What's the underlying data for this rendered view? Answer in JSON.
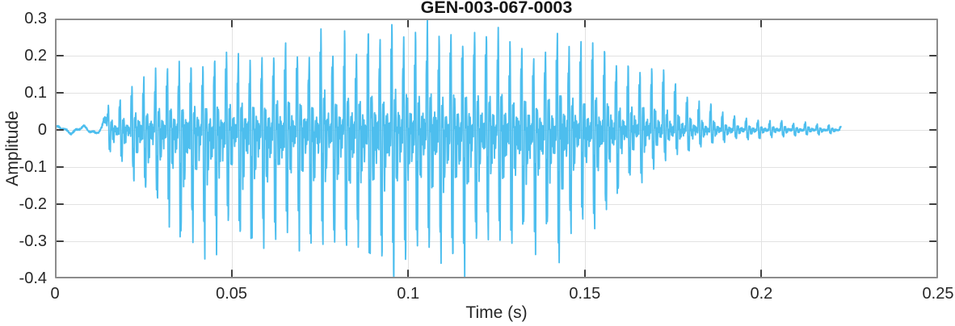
{
  "chart_data": {
    "type": "line",
    "title": "GEN-003-067-0003",
    "xlabel": "Time (s)",
    "ylabel": "Amplitude",
    "xlim": [
      0,
      0.25
    ],
    "ylim": [
      -0.4,
      0.3
    ],
    "x_ticks": [
      0,
      0.05,
      0.1,
      0.15,
      0.2,
      0.25
    ],
    "x_tick_labels": [
      "0",
      "0.05",
      "0.1",
      "0.15",
      "0.2",
      "0.25"
    ],
    "y_ticks": [
      -0.4,
      -0.3,
      -0.2,
      -0.1,
      0,
      0.1,
      0.2,
      0.3
    ],
    "y_tick_labels": [
      "-0.4",
      "-0.3",
      "-0.2",
      "-0.1",
      "0",
      "0.1",
      "0.2",
      "0.3"
    ],
    "grid": true,
    "box": true,
    "legend": null,
    "colors": {
      "line": "#4DBEEE",
      "grid": "#E2E2E2",
      "axis_box": "#8C8C8C",
      "tick": "#3F3F3F",
      "text": "#262626",
      "title": "#161616",
      "background": "#FFFFFF"
    },
    "series": [
      {
        "name": "acoustic waveform",
        "color": "#4DBEEE",
        "signal": {
          "kind": "speech-like oscillatory waveform described by its envelope",
          "f0_hz": 299,
          "onset_s": 0.0148,
          "end_s": 0.2225,
          "peak_amplitude": 0.285,
          "peak_time_s": 0.094,
          "min_amplitude": -0.39,
          "min_time_s": 0.111,
          "envelope": [
            {
              "t": 0.0,
              "pos": 0.009,
              "neg": -0.009
            },
            {
              "t": 0.013,
              "pos": 0.01,
              "neg": -0.01
            },
            {
              "t": 0.0155,
              "pos": 0.075,
              "neg": -0.065
            },
            {
              "t": 0.019,
              "pos": 0.095,
              "neg": -0.095
            },
            {
              "t": 0.023,
              "pos": 0.125,
              "neg": -0.145
            },
            {
              "t": 0.027,
              "pos": 0.155,
              "neg": -0.215
            },
            {
              "t": 0.031,
              "pos": 0.175,
              "neg": -0.26
            },
            {
              "t": 0.036,
              "pos": 0.19,
              "neg": -0.29
            },
            {
              "t": 0.04,
              "pos": 0.2,
              "neg": -0.31
            },
            {
              "t": 0.046,
              "pos": 0.195,
              "neg": -0.3
            },
            {
              "t": 0.052,
              "pos": 0.205,
              "neg": -0.295
            },
            {
              "t": 0.058,
              "pos": 0.22,
              "neg": -0.3
            },
            {
              "t": 0.064,
              "pos": 0.23,
              "neg": -0.305
            },
            {
              "t": 0.07,
              "pos": 0.24,
              "neg": -0.315
            },
            {
              "t": 0.076,
              "pos": 0.245,
              "neg": -0.32
            },
            {
              "t": 0.082,
              "pos": 0.25,
              "neg": -0.335
            },
            {
              "t": 0.088,
              "pos": 0.27,
              "neg": -0.345
            },
            {
              "t": 0.094,
              "pos": 0.285,
              "neg": -0.365
            },
            {
              "t": 0.1,
              "pos": 0.27,
              "neg": -0.37
            },
            {
              "t": 0.106,
              "pos": 0.275,
              "neg": -0.38
            },
            {
              "t": 0.111,
              "pos": 0.28,
              "neg": -0.39
            },
            {
              "t": 0.116,
              "pos": 0.27,
              "neg": -0.36
            },
            {
              "t": 0.122,
              "pos": 0.26,
              "neg": -0.34
            },
            {
              "t": 0.13,
              "pos": 0.245,
              "neg": -0.33
            },
            {
              "t": 0.138,
              "pos": 0.235,
              "neg": -0.31
            },
            {
              "t": 0.1445,
              "pos": 0.26,
              "neg": -0.35
            },
            {
              "t": 0.15,
              "pos": 0.24,
              "neg": -0.26
            },
            {
              "t": 0.154,
              "pos": 0.225,
              "neg": -0.235
            },
            {
              "t": 0.158,
              "pos": 0.215,
              "neg": -0.2
            },
            {
              "t": 0.162,
              "pos": 0.185,
              "neg": -0.16
            },
            {
              "t": 0.166,
              "pos": 0.175,
              "neg": -0.13
            },
            {
              "t": 0.17,
              "pos": 0.172,
              "neg": -0.11
            },
            {
              "t": 0.174,
              "pos": 0.14,
              "neg": -0.08
            },
            {
              "t": 0.178,
              "pos": 0.108,
              "neg": -0.065
            },
            {
              "t": 0.182,
              "pos": 0.095,
              "neg": -0.055
            },
            {
              "t": 0.186,
              "pos": 0.065,
              "neg": -0.045
            },
            {
              "t": 0.19,
              "pos": 0.042,
              "neg": -0.032
            },
            {
              "t": 0.195,
              "pos": 0.033,
              "neg": -0.026
            },
            {
              "t": 0.2,
              "pos": 0.028,
              "neg": -0.022
            },
            {
              "t": 0.206,
              "pos": 0.024,
              "neg": -0.018
            },
            {
              "t": 0.212,
              "pos": 0.021,
              "neg": -0.015
            },
            {
              "t": 0.218,
              "pos": 0.016,
              "neg": -0.012
            },
            {
              "t": 0.2225,
              "pos": 0.01,
              "neg": -0.008
            }
          ]
        }
      }
    ]
  }
}
